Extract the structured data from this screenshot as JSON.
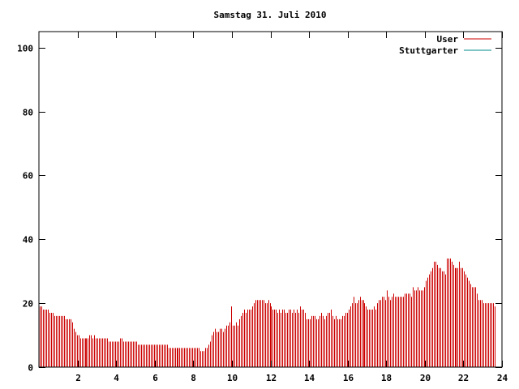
{
  "chart_data": {
    "type": "bar",
    "title": "Samstag 31. Juli 2010",
    "xlabel": "",
    "ylabel": "",
    "xlim": [
      0,
      24
    ],
    "ylim": [
      0,
      105
    ],
    "x_ticks": [
      "2",
      "4",
      "6",
      "8",
      "10",
      "12",
      "14",
      "16",
      "18",
      "20",
      "22",
      "24"
    ],
    "y_ticks": [
      "0",
      "20",
      "40",
      "60",
      "80",
      "100"
    ],
    "grid": false,
    "legend": "top-right",
    "series": [
      {
        "name": "User",
        "color": "#cc0000",
        "sample_minutes": 5,
        "values": [
          19,
          19,
          18,
          18,
          18,
          18,
          17,
          17,
          17,
          16,
          16,
          16,
          16,
          16,
          16,
          16,
          15,
          15,
          15,
          15,
          14,
          12,
          11,
          10,
          10,
          9,
          9,
          9,
          9,
          9,
          9,
          10,
          10,
          9,
          10,
          9,
          9,
          9,
          9,
          9,
          9,
          9,
          9,
          8,
          8,
          8,
          8,
          8,
          8,
          8,
          9,
          9,
          8,
          8,
          8,
          8,
          8,
          8,
          8,
          8,
          8,
          7,
          7,
          7,
          7,
          7,
          7,
          7,
          7,
          7,
          7,
          7,
          7,
          7,
          7,
          7,
          7,
          7,
          7,
          7,
          6,
          6,
          6,
          6,
          6,
          6,
          6,
          6,
          6,
          6,
          6,
          6,
          6,
          6,
          6,
          6,
          6,
          6,
          6,
          6,
          5,
          5,
          5,
          6,
          6,
          7,
          8,
          10,
          11,
          12,
          11,
          11,
          12,
          12,
          11,
          12,
          13,
          13,
          14,
          19,
          13,
          13,
          14,
          13,
          15,
          16,
          17,
          18,
          17,
          18,
          18,
          18,
          19,
          20,
          21,
          21,
          21,
          21,
          21,
          21,
          20,
          20,
          21,
          20,
          19,
          18,
          18,
          18,
          17,
          18,
          17,
          18,
          18,
          17,
          17,
          18,
          18,
          17,
          18,
          17,
          18,
          17,
          19,
          18,
          18,
          17,
          15,
          15,
          15,
          16,
          16,
          16,
          15,
          15,
          16,
          17,
          16,
          15,
          16,
          17,
          17,
          18,
          16,
          15,
          16,
          15,
          15,
          15,
          16,
          16,
          17,
          17,
          18,
          19,
          20,
          22,
          20,
          20,
          21,
          22,
          21,
          21,
          20,
          19,
          18,
          18,
          18,
          18,
          19,
          18,
          20,
          21,
          21,
          22,
          22,
          21,
          24,
          22,
          21,
          22,
          23,
          22,
          22,
          22,
          22,
          22,
          22,
          23,
          23,
          23,
          23,
          22,
          25,
          24,
          24,
          25,
          24,
          24,
          24,
          25,
          27,
          28,
          29,
          30,
          31,
          33,
          33,
          32,
          31,
          31,
          30,
          30,
          29,
          34,
          34,
          34,
          33,
          32,
          31,
          31,
          31,
          33,
          31,
          31,
          30,
          29,
          28,
          27,
          26,
          25,
          25,
          25,
          23,
          21,
          21,
          21,
          20,
          20,
          20,
          20,
          20,
          20,
          20,
          19
        ]
      },
      {
        "name": "Stuttgarter",
        "color": "#008b8b",
        "values": []
      }
    ]
  }
}
